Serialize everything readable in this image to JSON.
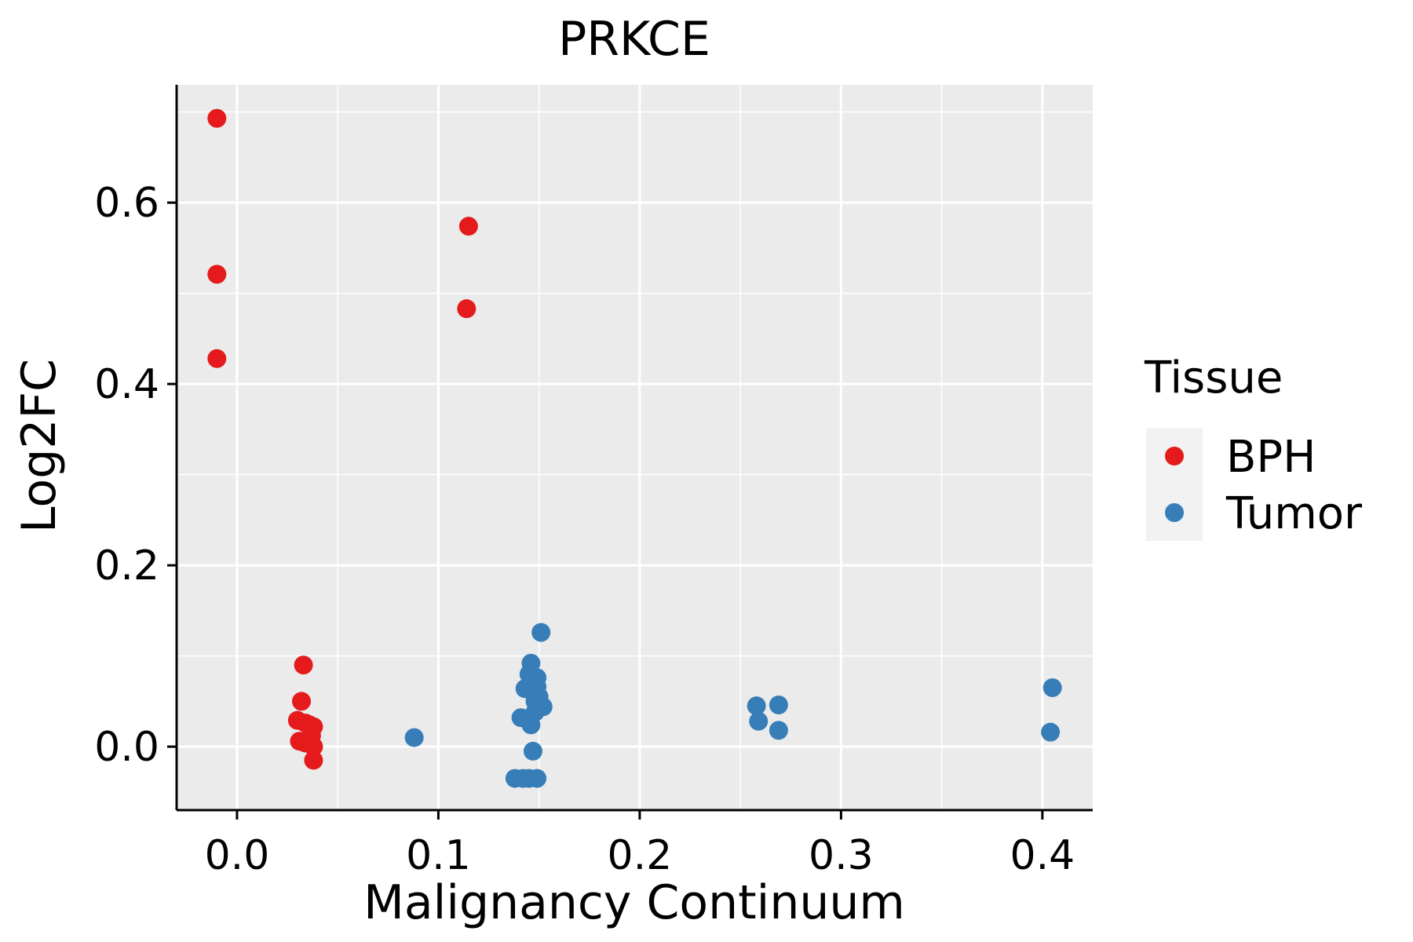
{
  "chart_data": {
    "type": "scatter",
    "title": "PRKCE",
    "xlabel": "Malignancy Continuum",
    "ylabel": "Log2FC",
    "xlim": [
      -0.03,
      0.425
    ],
    "ylim": [
      -0.07,
      0.73
    ],
    "xticks": [
      0.0,
      0.1,
      0.2,
      0.3,
      0.4
    ],
    "xtick_labels": [
      "0.0",
      "0.1",
      "0.2",
      "0.3",
      "0.4"
    ],
    "yticks": [
      0.0,
      0.2,
      0.4,
      0.6
    ],
    "ytick_labels": [
      "0.0",
      "0.2",
      "0.4",
      "0.6"
    ],
    "grid": true,
    "legend": {
      "title": "Tissue",
      "position": "right",
      "entries": [
        {
          "label": "BPH",
          "color": "#E41A1C"
        },
        {
          "label": "Tumor",
          "color": "#377EB8"
        }
      ]
    },
    "series": [
      {
        "name": "BPH",
        "color": "#E41A1C",
        "points": [
          {
            "x": -0.01,
            "y": 0.693
          },
          {
            "x": -0.01,
            "y": 0.521
          },
          {
            "x": -0.01,
            "y": 0.428
          },
          {
            "x": 0.115,
            "y": 0.574
          },
          {
            "x": 0.114,
            "y": 0.483
          },
          {
            "x": 0.033,
            "y": 0.09
          },
          {
            "x": 0.032,
            "y": 0.05
          },
          {
            "x": 0.03,
            "y": 0.029
          },
          {
            "x": 0.034,
            "y": 0.026
          },
          {
            "x": 0.036,
            "y": 0.024
          },
          {
            "x": 0.038,
            "y": 0.022
          },
          {
            "x": 0.037,
            "y": 0.012
          },
          {
            "x": 0.031,
            "y": 0.006
          },
          {
            "x": 0.034,
            "y": 0.004
          },
          {
            "x": 0.038,
            "y": 0.0
          },
          {
            "x": 0.038,
            "y": -0.015
          }
        ]
      },
      {
        "name": "Tumor",
        "color": "#377EB8",
        "points": [
          {
            "x": 0.088,
            "y": 0.01
          },
          {
            "x": 0.151,
            "y": 0.126
          },
          {
            "x": 0.146,
            "y": 0.092
          },
          {
            "x": 0.145,
            "y": 0.08
          },
          {
            "x": 0.149,
            "y": 0.076
          },
          {
            "x": 0.149,
            "y": 0.066
          },
          {
            "x": 0.143,
            "y": 0.064
          },
          {
            "x": 0.147,
            "y": 0.06
          },
          {
            "x": 0.15,
            "y": 0.055
          },
          {
            "x": 0.148,
            "y": 0.05
          },
          {
            "x": 0.152,
            "y": 0.044
          },
          {
            "x": 0.148,
            "y": 0.038
          },
          {
            "x": 0.141,
            "y": 0.032
          },
          {
            "x": 0.146,
            "y": 0.024
          },
          {
            "x": 0.147,
            "y": -0.005
          },
          {
            "x": 0.138,
            "y": -0.035
          },
          {
            "x": 0.142,
            "y": -0.035
          },
          {
            "x": 0.145,
            "y": -0.035
          },
          {
            "x": 0.149,
            "y": -0.035
          },
          {
            "x": 0.258,
            "y": 0.045
          },
          {
            "x": 0.269,
            "y": 0.046
          },
          {
            "x": 0.259,
            "y": 0.028
          },
          {
            "x": 0.269,
            "y": 0.018
          },
          {
            "x": 0.405,
            "y": 0.065
          },
          {
            "x": 0.404,
            "y": 0.016
          }
        ]
      }
    ]
  }
}
